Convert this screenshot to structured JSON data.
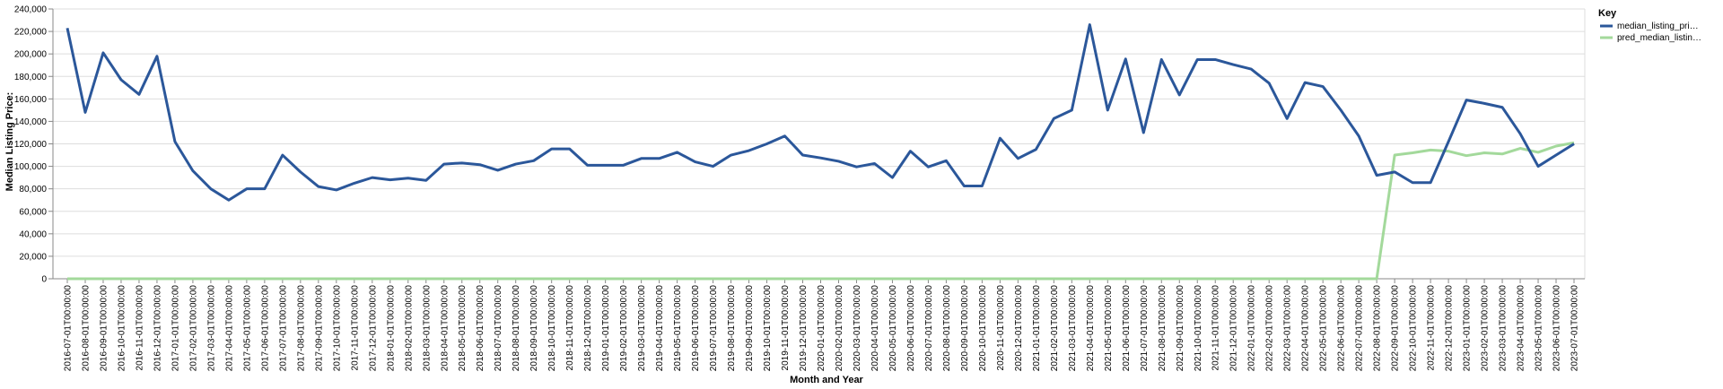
{
  "chart_data": {
    "type": "line",
    "xlabel": "Month and Year",
    "ylabel": "Median Listing Price:",
    "ylim": [
      0,
      240000
    ],
    "y_ticks": [
      "0",
      "20,000",
      "40,000",
      "60,000",
      "80,000",
      "100,000",
      "120,000",
      "140,000",
      "160,000",
      "180,000",
      "200,000",
      "220,000",
      "240,000"
    ],
    "grid": true,
    "legend": {
      "title": "Key",
      "position": "top-right"
    },
    "x": [
      "2016-07-01T00:00:00",
      "2016-08-01T00:00:00",
      "2016-09-01T00:00:00",
      "2016-10-01T00:00:00",
      "2016-11-01T00:00:00",
      "2016-12-01T00:00:00",
      "2017-01-01T00:00:00",
      "2017-02-01T00:00:00",
      "2017-03-01T00:00:00",
      "2017-04-01T00:00:00",
      "2017-05-01T00:00:00",
      "2017-06-01T00:00:00",
      "2017-07-01T00:00:00",
      "2017-08-01T00:00:00",
      "2017-09-01T00:00:00",
      "2017-10-01T00:00:00",
      "2017-11-01T00:00:00",
      "2017-12-01T00:00:00",
      "2018-01-01T00:00:00",
      "2018-02-01T00:00:00",
      "2018-03-01T00:00:00",
      "2018-04-01T00:00:00",
      "2018-05-01T00:00:00",
      "2018-06-01T00:00:00",
      "2018-07-01T00:00:00",
      "2018-08-01T00:00:00",
      "2018-09-01T00:00:00",
      "2018-10-01T00:00:00",
      "2018-11-01T00:00:00",
      "2018-12-01T00:00:00",
      "2019-01-01T00:00:00",
      "2019-02-01T00:00:00",
      "2019-03-01T00:00:00",
      "2019-04-01T00:00:00",
      "2019-05-01T00:00:00",
      "2019-06-01T00:00:00",
      "2019-07-01T00:00:00",
      "2019-08-01T00:00:00",
      "2019-09-01T00:00:00",
      "2019-10-01T00:00:00",
      "2019-11-01T00:00:00",
      "2019-12-01T00:00:00",
      "2020-01-01T00:00:00",
      "2020-02-01T00:00:00",
      "2020-03-01T00:00:00",
      "2020-04-01T00:00:00",
      "2020-05-01T00:00:00",
      "2020-06-01T00:00:00",
      "2020-07-01T00:00:00",
      "2020-08-01T00:00:00",
      "2020-09-01T00:00:00",
      "2020-10-01T00:00:00",
      "2020-11-01T00:00:00",
      "2020-12-01T00:00:00",
      "2021-01-01T00:00:00",
      "2021-02-01T00:00:00",
      "2021-03-01T00:00:00",
      "2021-04-01T00:00:00",
      "2021-05-01T00:00:00",
      "2021-06-01T00:00:00",
      "2021-07-01T00:00:00",
      "2021-08-01T00:00:00",
      "2021-09-01T00:00:00",
      "2021-10-01T00:00:00",
      "2021-11-01T00:00:00",
      "2021-12-01T00:00:00",
      "2022-01-01T00:00:00",
      "2022-02-01T00:00:00",
      "2022-03-01T00:00:00",
      "2022-04-01T00:00:00",
      "2022-05-01T00:00:00",
      "2022-06-01T00:00:00",
      "2022-07-01T00:00:00",
      "2022-08-01T00:00:00",
      "2022-09-01T00:00:00",
      "2022-10-01T00:00:00",
      "2022-11-01T00:00:00",
      "2022-12-01T00:00:00",
      "2023-01-01T00:00:00",
      "2023-02-01T00:00:00",
      "2023-03-01T00:00:00",
      "2023-04-01T00:00:00",
      "2023-05-01T00:00:00",
      "2023-06-01T00:00:00",
      "2023-07-01T00:00:00"
    ],
    "series": [
      {
        "name": "median_listing_pri…",
        "color": "#2b579a",
        "values": [
          223000,
          148000,
          201000,
          177000,
          164000,
          198000,
          122000,
          96000,
          80000,
          70000,
          80000,
          80000,
          110000,
          95000,
          82000,
          79000,
          85000,
          90000,
          88000,
          89500,
          87500,
          102000,
          103000,
          101500,
          96500,
          102000,
          105000,
          115500,
          115500,
          101000,
          101000,
          101000,
          107000,
          107000,
          112500,
          104000,
          100000,
          110000,
          114000,
          120000,
          127000,
          110000,
          107500,
          104500,
          99500,
          102500,
          90000,
          113500,
          99500,
          105000,
          82500,
          82500,
          125000,
          107000,
          115000,
          142500,
          150000,
          226000,
          150000,
          195500,
          130000,
          195000,
          163500,
          195000,
          195000,
          190500,
          186500,
          174000,
          142500,
          174500,
          171000,
          150000,
          127000,
          92000,
          95000,
          85500,
          85500,
          122000,
          159000,
          156000,
          152500,
          129000,
          100000,
          110000,
          120000
        ]
      },
      {
        "name": "pred_median_listin…",
        "color": "#a3d99b",
        "values": [
          0,
          0,
          0,
          0,
          0,
          0,
          0,
          0,
          0,
          0,
          0,
          0,
          0,
          0,
          0,
          0,
          0,
          0,
          0,
          0,
          0,
          0,
          0,
          0,
          0,
          0,
          0,
          0,
          0,
          0,
          0,
          0,
          0,
          0,
          0,
          0,
          0,
          0,
          0,
          0,
          0,
          0,
          0,
          0,
          0,
          0,
          0,
          0,
          0,
          0,
          0,
          0,
          0,
          0,
          0,
          0,
          0,
          0,
          0,
          0,
          0,
          0,
          0,
          0,
          0,
          0,
          0,
          0,
          0,
          0,
          0,
          0,
          0,
          0,
          110000,
          112000,
          114500,
          113500,
          109500,
          112000,
          111000,
          116000,
          112500,
          118000,
          121000
        ]
      }
    ]
  }
}
